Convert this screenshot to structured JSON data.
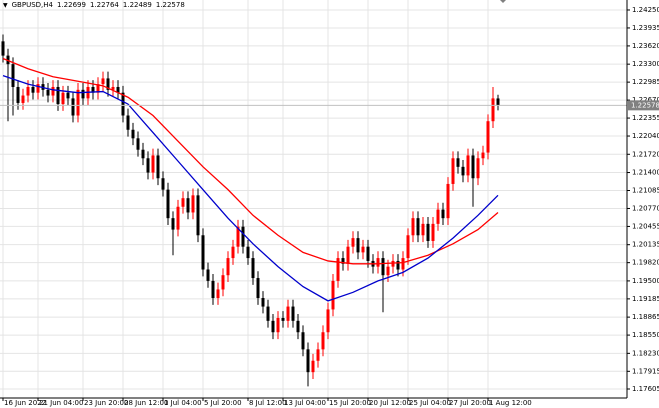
{
  "chart_data": {
    "type": "candlestick",
    "symbol": "GBPUSD,H4",
    "categories": [
      "16 Jun 2022",
      null,
      null,
      null,
      null,
      null,
      null,
      "21 Jun 04:00",
      null,
      null,
      null,
      null,
      null,
      null,
      null,
      null,
      "23 Jun 20:00",
      null,
      null,
      null,
      null,
      null,
      null,
      null,
      "28 Jun 12:00",
      null,
      null,
      null,
      null,
      null,
      null,
      null,
      "1 Jul 04:00",
      null,
      null,
      null,
      null,
      null,
      null,
      null,
      "5 Jul 20:00",
      null,
      null,
      null,
      null,
      null,
      null,
      null,
      null,
      "8 Jul 12:00",
      null,
      null,
      null,
      null,
      null,
      null,
      "13 Jul 04:00",
      null,
      null,
      null,
      null,
      null,
      null,
      null,
      null,
      "15 Jul 20:00",
      null,
      null,
      null,
      null,
      null,
      null,
      null,
      "20 Jul 12:00",
      null,
      null,
      null,
      null,
      null,
      null,
      null,
      "25 Jul 04:00",
      null,
      null,
      null,
      null,
      null,
      null,
      null,
      "27 Jul 20:00",
      null,
      null,
      null,
      null,
      null,
      null,
      null,
      "1 Aug 12:00",
      null,
      null
    ],
    "open": [
      1.237,
      1.2345,
      1.233,
      1.229,
      1.2262,
      1.2275,
      1.229,
      1.228,
      1.2295,
      1.2285,
      1.2275,
      1.229,
      1.226,
      1.228,
      1.227,
      1.224,
      1.2285,
      1.227,
      1.229,
      1.228,
      1.2295,
      1.2305,
      1.2285,
      1.229,
      1.228,
      1.224,
      1.2215,
      1.22,
      1.218,
      1.2165,
      1.214,
      1.217,
      1.213,
      1.211,
      1.206,
      1.204,
      1.208,
      1.2095,
      1.207,
      1.21,
      1.203,
      1.197,
      1.195,
      1.192,
      1.1935,
      1.196,
      1.199,
      1.201,
      1.2045,
      1.201,
      1.199,
      1.1955,
      1.192,
      1.1905,
      1.188,
      1.186,
      1.1885,
      1.188,
      1.1905,
      1.188,
      1.186,
      1.183,
      1.179,
      1.181,
      1.183,
      1.186,
      1.19,
      1.195,
      1.199,
      1.198,
      1.201,
      1.2025,
      1.2,
      1.201,
      1.1985,
      1.1975,
      1.199,
      1.196,
      1.1975,
      1.1985,
      1.197,
      1.199,
      1.203,
      1.206,
      1.203,
      1.205,
      1.202,
      1.205,
      1.2075,
      1.206,
      1.212,
      1.2165,
      1.215,
      1.2135,
      1.217,
      1.213,
      1.2165,
      1.2175,
      1.223,
      1.22699
    ],
    "high": [
      1.2382,
      1.2357,
      1.2342,
      1.2302,
      1.2287,
      1.2302,
      1.2302,
      1.2307,
      1.2307,
      1.2297,
      1.2302,
      1.2302,
      1.2292,
      1.2292,
      1.2282,
      1.2297,
      1.2297,
      1.2302,
      1.2302,
      1.2307,
      1.2317,
      1.2317,
      1.2302,
      1.2302,
      1.2292,
      1.2252,
      1.2227,
      1.2212,
      1.2192,
      1.2177,
      1.2182,
      1.2182,
      1.2142,
      1.2122,
      1.2072,
      1.2092,
      1.2107,
      1.2107,
      1.2112,
      1.2112,
      1.2042,
      1.1982,
      1.1962,
      1.1947,
      1.1972,
      1.2002,
      1.2022,
      1.2057,
      1.2057,
      1.2022,
      1.2002,
      1.1967,
      1.1932,
      1.1917,
      1.1892,
      1.1897,
      1.1897,
      1.1917,
      1.1917,
      1.1892,
      1.1872,
      1.1842,
      1.1822,
      1.1842,
      1.1872,
      1.1912,
      1.1962,
      1.2002,
      1.2002,
      1.2022,
      1.2037,
      1.2037,
      1.2022,
      1.2022,
      1.1997,
      1.2002,
      1.2002,
      1.1987,
      1.1997,
      1.1997,
      1.2002,
      1.2042,
      1.2072,
      1.2072,
      1.2062,
      1.2062,
      1.2062,
      1.2087,
      1.2087,
      1.2132,
      1.2177,
      1.2177,
      1.2162,
      1.2182,
      1.2182,
      1.2177,
      1.2187,
      1.2242,
      1.229,
      1.22764
    ],
    "low": [
      1.2333,
      1.223,
      1.224,
      1.225,
      1.225,
      1.2263,
      1.2268,
      1.2268,
      1.2273,
      1.2263,
      1.2263,
      1.2248,
      1.2248,
      1.2258,
      1.2228,
      1.2228,
      1.2258,
      1.2258,
      1.2268,
      1.2268,
      1.2283,
      1.2273,
      1.2273,
      1.2268,
      1.2228,
      1.2203,
      1.2188,
      1.2168,
      1.2153,
      1.2128,
      1.2128,
      1.2118,
      1.2098,
      1.2048,
      1.1995,
      1.2028,
      1.2068,
      1.2058,
      1.2058,
      1.2018,
      1.1958,
      1.1938,
      1.1908,
      1.1908,
      1.1923,
      1.1948,
      1.1978,
      1.1998,
      1.1998,
      1.1978,
      1.1943,
      1.1908,
      1.1893,
      1.1868,
      1.1848,
      1.1848,
      1.1868,
      1.1868,
      1.1868,
      1.1848,
      1.1818,
      1.1765,
      1.1778,
      1.1798,
      1.1818,
      1.1848,
      1.1888,
      1.1938,
      1.1968,
      1.1968,
      1.1998,
      1.1988,
      1.1988,
      1.1973,
      1.1963,
      1.1963,
      1.1895,
      1.1948,
      1.1963,
      1.1958,
      1.1958,
      1.1978,
      1.2018,
      1.2018,
      1.2018,
      1.2008,
      1.2008,
      1.2038,
      1.2048,
      1.2048,
      1.2108,
      1.2138,
      1.2123,
      1.2123,
      1.208,
      1.2118,
      1.2153,
      1.2163,
      1.2218,
      1.22489
    ],
    "close": [
      1.2345,
      1.233,
      1.229,
      1.2262,
      1.2275,
      1.229,
      1.228,
      1.2295,
      1.2285,
      1.2275,
      1.229,
      1.226,
      1.228,
      1.227,
      1.224,
      1.2285,
      1.227,
      1.229,
      1.228,
      1.2295,
      1.2305,
      1.2285,
      1.229,
      1.228,
      1.224,
      1.2215,
      1.22,
      1.218,
      1.2165,
      1.214,
      1.217,
      1.213,
      1.211,
      1.206,
      1.204,
      1.208,
      1.2095,
      1.207,
      1.21,
      1.203,
      1.197,
      1.195,
      1.192,
      1.1935,
      1.196,
      1.199,
      1.201,
      1.2045,
      1.201,
      1.199,
      1.1955,
      1.192,
      1.1905,
      1.188,
      1.186,
      1.1885,
      1.188,
      1.1905,
      1.188,
      1.186,
      1.183,
      1.179,
      1.181,
      1.183,
      1.186,
      1.19,
      1.195,
      1.199,
      1.198,
      1.201,
      1.2025,
      1.2,
      1.201,
      1.1985,
      1.1975,
      1.199,
      1.196,
      1.1975,
      1.1985,
      1.197,
      1.199,
      1.203,
      1.206,
      1.203,
      1.205,
      1.202,
      1.205,
      1.2075,
      1.206,
      1.212,
      1.2165,
      1.215,
      1.2135,
      1.217,
      1.213,
      1.2165,
      1.2175,
      1.223,
      1.227,
      1.22578
    ],
    "up_color": "#ff0000",
    "down_color": "#000000",
    "lines": [
      {
        "color": "#ff0000",
        "x": [
          0,
          5,
          10,
          15,
          20,
          25,
          30,
          35,
          40,
          45,
          50,
          55,
          60,
          65,
          70,
          75,
          80,
          85,
          90,
          95,
          99
        ],
        "values": [
          1.234,
          1.2322,
          1.2308,
          1.23,
          1.2292,
          1.2272,
          1.224,
          1.2195,
          1.215,
          1.211,
          1.2065,
          1.203,
          1.2,
          1.1985,
          1.198,
          1.198,
          1.1982,
          1.1995,
          1.2015,
          1.204,
          1.207
        ]
      },
      {
        "color": "#0000cc",
        "x": [
          0,
          5,
          10,
          15,
          20,
          25,
          30,
          35,
          40,
          45,
          50,
          55,
          60,
          65,
          70,
          75,
          80,
          85,
          90,
          95,
          99
        ],
        "values": [
          1.231,
          1.2295,
          1.2285,
          1.228,
          1.2282,
          1.226,
          1.221,
          1.216,
          1.211,
          1.206,
          1.2015,
          1.1975,
          1.194,
          1.1915,
          1.193,
          1.195,
          1.1965,
          1.199,
          1.2025,
          1.2065,
          1.21
        ]
      }
    ],
    "ylim": [
      1.17447,
      1.24425
    ],
    "yticks": [
      {
        "value": 1.2425,
        "label": "1.24250"
      },
      1.23935,
      {
        "value": 1.2362,
        "label": "1.23620"
      },
      {
        "value": 1.233,
        "label": "1.23300"
      },
      1.22985,
      {
        "value": 1.2267,
        "label": "1.22670"
      },
      1.22355,
      {
        "value": 1.2204,
        "label": "1.22040"
      },
      {
        "value": 1.2172,
        "label": "1.21720"
      },
      {
        "value": 1.214,
        "label": "1.21400"
      },
      1.21085,
      {
        "value": 1.2077,
        "label": "1.20770"
      },
      1.20455,
      1.20135,
      {
        "value": 1.1982,
        "label": "1.19820"
      },
      {
        "value": 1.195,
        "label": "1.19500"
      },
      1.19185,
      1.18865,
      {
        "value": 1.1855,
        "label": "1.18550"
      },
      {
        "value": 1.1823,
        "label": "1.18230"
      },
      1.17915,
      1.17605
    ],
    "grid": true
  }
}
